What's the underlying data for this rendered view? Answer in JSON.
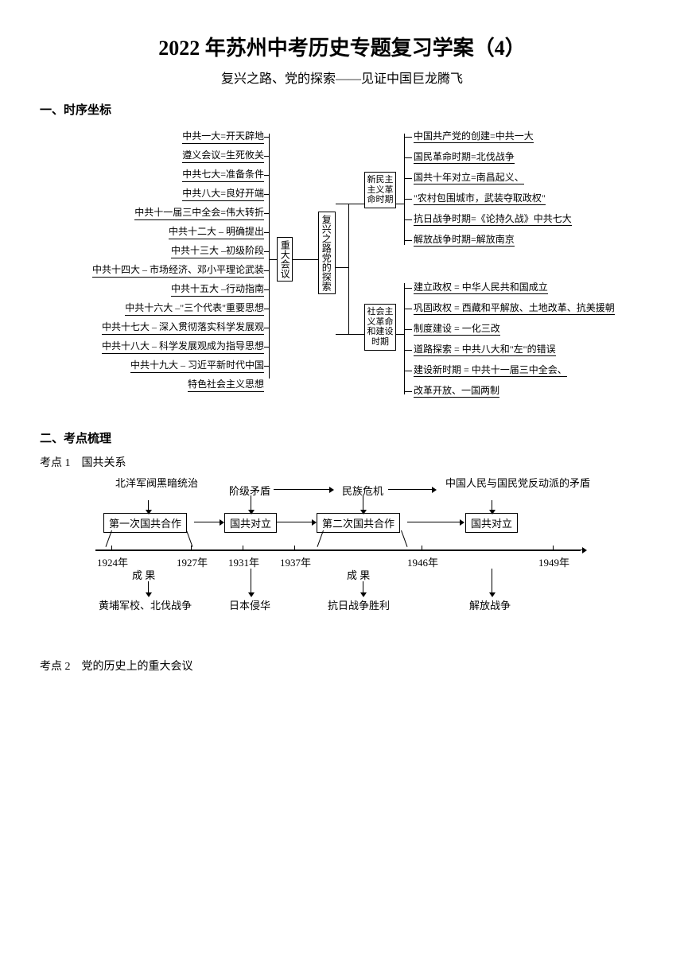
{
  "title": "2022 年苏州中考历史专题复习学案（4）",
  "subtitle": "复兴之路、党的探索——见证中国巨龙腾飞",
  "section1": "一、时序坐标",
  "section2": "二、考点梳理",
  "subpoint1": "考点 1　国共关系",
  "subpoint2": "考点 2　党的历史上的重大会议",
  "diagram1": {
    "center": "复兴之路党的探索",
    "left_center": "重大会议",
    "right_top": "新民主主义革命时期",
    "right_bottom": "社会主义革命和建设时期",
    "left_items": [
      "中共一大=开天辟地",
      "遵义会议=生死攸关",
      "中共七大=准备条件",
      "中共八大=良好开端",
      "中共十一届三中全会=伟大转折",
      "中共十二大 – 明确提出",
      "中共十三大 –初级阶段",
      "中共十四大 – 市场经济、邓小平理论武装",
      "中共十五大 –行动指南",
      "中共十六大 –\"三个代表\"重要思想",
      "中共十七大 – 深入贯彻落实科学发展观",
      "中共十八大 – 科学发展观成为指导思想",
      "中共十九大 – 习近平新时代中国"
    ],
    "left_last_sub": "特色社会主义思想",
    "right_top_items": [
      "中国共产党的创建=中共一大",
      "国民革命时期=北伐战争",
      "国共十年对立=南昌起义、",
      "\"农村包围城市，武装夺取政权\"",
      "抗日战争时期=《论持久战》中共七大",
      "解放战争时期=解放南京"
    ],
    "right_bottom_items": [
      "建立政权 = 中华人民共和国成立",
      "巩固政权 = 西藏和平解放、土地改革、抗美援朝",
      "制度建设 = 一化三改",
      "道路探索 = 中共八大和\"左\"的错误",
      "建设新时期 = 中共十一届三中全会、",
      "改革开放、一国两制"
    ]
  },
  "diagram2": {
    "top_row": [
      "北洋军阀黑暗统治",
      "阶级矛盾",
      "民族危机",
      "中国人民与国民党反动派的矛盾"
    ],
    "mid_row": [
      "第一次国共合作",
      "国共对立",
      "第二次国共合作",
      "国共对立"
    ],
    "years": [
      "1924年",
      "1927年",
      "1931年",
      "1937年",
      "1946年",
      "1949年"
    ],
    "mid_labels": [
      "成 果",
      "成 果"
    ],
    "bottom_row": [
      "黄埔军校、北伐战争",
      "日本侵华",
      "抗日战争胜利",
      "解放战争"
    ]
  },
  "colors": {
    "text": "#000000",
    "bg": "#ffffff",
    "line": "#000000"
  }
}
